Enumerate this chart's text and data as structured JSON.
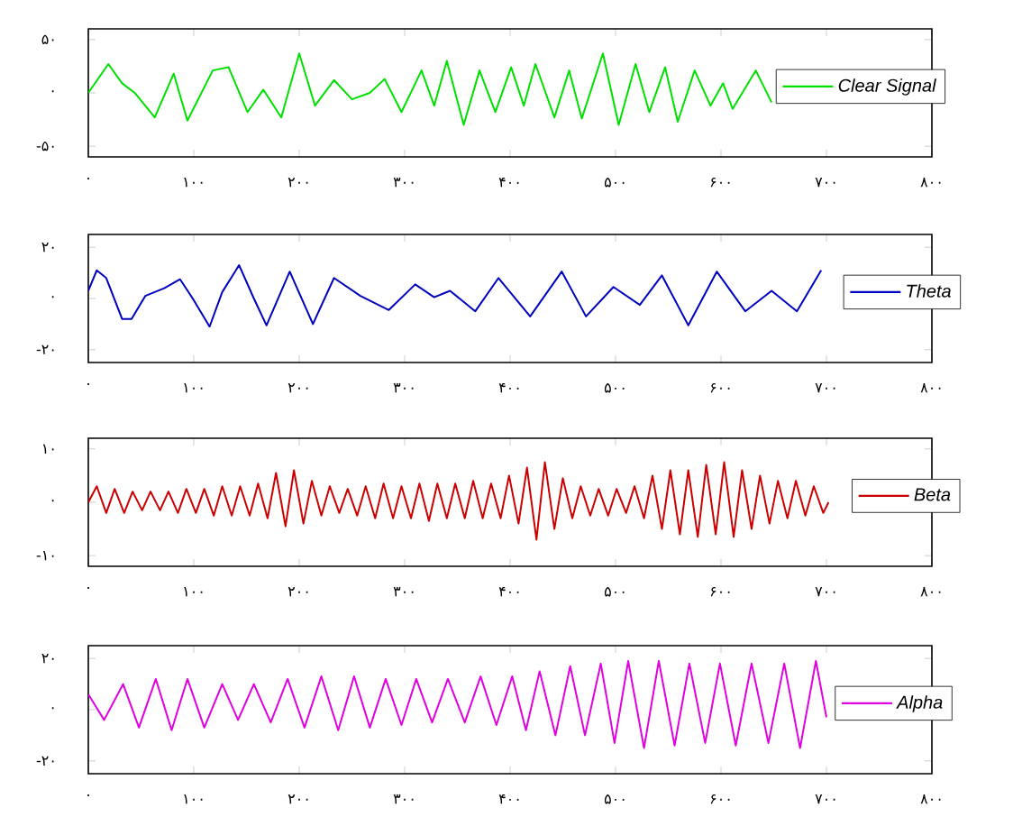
{
  "chart_data": [
    {
      "type": "line",
      "xlim": [
        0,
        800
      ],
      "ylim": [
        -60,
        60
      ],
      "legend": "right",
      "xticks": [
        {
          "value": 0,
          "label": "۰"
        },
        {
          "value": 100,
          "label": "۱۰۰"
        },
        {
          "value": 200,
          "label": "۲۰۰"
        },
        {
          "value": 300,
          "label": "۳۰۰"
        },
        {
          "value": 400,
          "label": "۴۰۰"
        },
        {
          "value": 500,
          "label": "۵۰۰"
        },
        {
          "value": 600,
          "label": "۶۰۰"
        },
        {
          "value": 700,
          "label": "۷۰۰"
        },
        {
          "value": 800,
          "label": "۸۰۰"
        }
      ],
      "yticks": [
        {
          "value": -50,
          "label": "-۵۰"
        },
        {
          "value": 0,
          "label": "۰"
        },
        {
          "value": 50,
          "label": "۵۰"
        }
      ],
      "series": [
        {
          "name": "Clear Signal",
          "color": "#00e000",
          "x": [
            0,
            19,
            32,
            44,
            63,
            81,
            94,
            118,
            133,
            151,
            166,
            183,
            200,
            215,
            233,
            250,
            267,
            281,
            297,
            316,
            328,
            340,
            356,
            371,
            386,
            401,
            413,
            424,
            442,
            456,
            468,
            488,
            503,
            519,
            532,
            547,
            559,
            575,
            590,
            602,
            611,
            633,
            648
          ],
          "values": [
            0,
            27,
            9,
            0,
            -23,
            18,
            -26,
            21,
            24,
            -18,
            3,
            -23,
            37,
            -12,
            12,
            -6,
            0,
            13,
            -18,
            21,
            -12,
            30,
            -30,
            21,
            -18,
            24,
            -12,
            27,
            -23,
            21,
            -24,
            37,
            -30,
            27,
            -18,
            24,
            -27,
            21,
            -12,
            9,
            -15,
            21,
            -9
          ]
        }
      ]
    },
    {
      "type": "line",
      "xlim": [
        0,
        800
      ],
      "ylim": [
        -25,
        25
      ],
      "legend": "right",
      "xticks": [
        {
          "value": 0,
          "label": "۰"
        },
        {
          "value": 100,
          "label": "۱۰۰"
        },
        {
          "value": 200,
          "label": "۲۰۰"
        },
        {
          "value": 300,
          "label": "۳۰۰"
        },
        {
          "value": 400,
          "label": "۴۰۰"
        },
        {
          "value": 500,
          "label": "۵۰۰"
        },
        {
          "value": 600,
          "label": "۶۰۰"
        },
        {
          "value": 700,
          "label": "۷۰۰"
        },
        {
          "value": 800,
          "label": "۸۰۰"
        }
      ],
      "yticks": [
        {
          "value": -20,
          "label": "-۲۰"
        },
        {
          "value": 0,
          "label": "۰"
        },
        {
          "value": 20,
          "label": "۲۰"
        }
      ],
      "series": [
        {
          "name": "Theta",
          "color": "#0000c0",
          "x": [
            0,
            8,
            17,
            32,
            41,
            54,
            72,
            87,
            99,
            115,
            127,
            143,
            157,
            169,
            191,
            213,
            233,
            258,
            285,
            310,
            328,
            343,
            367,
            389,
            419,
            449,
            472,
            498,
            523,
            544,
            569,
            596,
            623,
            648,
            672,
            695
          ],
          "values": [
            3,
            11,
            8,
            -8,
            -8,
            1,
            4,
            7.5,
            0,
            -11,
            2.5,
            13,
            0,
            -10.5,
            10.5,
            -10,
            8,
            1,
            -4.5,
            5.5,
            0.5,
            3,
            -5,
            8,
            -7,
            10.5,
            -7,
            4.5,
            -2.5,
            9,
            -10.5,
            10.5,
            -5,
            3,
            -5,
            11
          ]
        }
      ]
    },
    {
      "type": "line",
      "xlim": [
        0,
        800
      ],
      "ylim": [
        -12,
        12
      ],
      "legend": "right",
      "xticks": [
        {
          "value": 0,
          "label": "۰"
        },
        {
          "value": 100,
          "label": "۱۰۰"
        },
        {
          "value": 200,
          "label": "۲۰۰"
        },
        {
          "value": 300,
          "label": "۳۰۰"
        },
        {
          "value": 400,
          "label": "۴۰۰"
        },
        {
          "value": 500,
          "label": "۵۰۰"
        },
        {
          "value": 600,
          "label": "۶۰۰"
        },
        {
          "value": 700,
          "label": "۷۰۰"
        },
        {
          "value": 800,
          "label": "۸۰۰"
        }
      ],
      "yticks": [
        {
          "value": -10,
          "label": "-۱۰"
        },
        {
          "value": 0,
          "label": "۰"
        },
        {
          "value": 10,
          "label": "۱۰"
        }
      ],
      "series": [
        {
          "name": "Beta",
          "color": "#cc0000",
          "x": [
            0,
            8,
            17,
            25,
            34,
            42,
            51,
            59,
            68,
            76,
            85,
            93,
            102,
            110,
            119,
            127,
            136,
            144,
            153,
            161,
            170,
            178,
            187,
            195,
            204,
            212,
            221,
            229,
            238,
            246,
            255,
            263,
            272,
            280,
            289,
            297,
            306,
            314,
            323,
            331,
            340,
            348,
            357,
            365,
            374,
            382,
            391,
            399,
            408,
            416,
            425,
            433,
            442,
            450,
            459,
            467,
            476,
            484,
            493,
            501,
            510,
            518,
            527,
            535,
            544,
            552,
            561,
            569,
            578,
            586,
            595,
            603,
            612,
            620,
            629,
            637,
            646,
            654,
            663,
            671,
            680,
            688,
            697,
            702
          ],
          "values": [
            0,
            3,
            -2,
            2.5,
            -2,
            2,
            -1.5,
            2,
            -1.5,
            2,
            -2,
            2.5,
            -2,
            2.5,
            -2.5,
            3,
            -2.5,
            3,
            -2.5,
            3.5,
            -3,
            5.5,
            -4.5,
            6,
            -4,
            4,
            -2.5,
            3,
            -2,
            2.5,
            -2.5,
            3,
            -3,
            3.5,
            -3,
            3,
            -3,
            3.5,
            -3.5,
            3.5,
            -3,
            3.5,
            -3,
            4,
            -3,
            3.5,
            -3,
            5,
            -4,
            6.5,
            -7,
            7.5,
            -5,
            4.5,
            -3,
            3,
            -2.5,
            2.5,
            -2.5,
            2.5,
            -2,
            3,
            -3,
            5,
            -5,
            6,
            -6,
            6,
            -6.5,
            7,
            -6,
            7.5,
            -6.5,
            6,
            -5,
            5,
            -4,
            4,
            -3,
            4,
            -2.5,
            3,
            -2,
            0
          ]
        }
      ]
    },
    {
      "type": "line",
      "xlim": [
        0,
        800
      ],
      "ylim": [
        -25,
        25
      ],
      "legend": "right",
      "xticks": [
        {
          "value": 0,
          "label": "۰"
        },
        {
          "value": 100,
          "label": "۱۰۰"
        },
        {
          "value": 200,
          "label": "۲۰۰"
        },
        {
          "value": 300,
          "label": "۳۰۰"
        },
        {
          "value": 400,
          "label": "۴۰۰"
        },
        {
          "value": 500,
          "label": "۵۰۰"
        },
        {
          "value": 600,
          "label": "۶۰۰"
        },
        {
          "value": 700,
          "label": "۷۰۰"
        },
        {
          "value": 800,
          "label": "۸۰۰"
        }
      ],
      "yticks": [
        {
          "value": -20,
          "label": "-۲۰"
        },
        {
          "value": 0,
          "label": "۰"
        },
        {
          "value": 20,
          "label": "۲۰"
        }
      ],
      "series": [
        {
          "name": "Alpha",
          "color": "#e000e0",
          "x": [
            0,
            15,
            33,
            48,
            64,
            79,
            94,
            110,
            127,
            142,
            157,
            173,
            189,
            205,
            221,
            237,
            252,
            267,
            282,
            297,
            311,
            326,
            341,
            357,
            372,
            387,
            402,
            415,
            428,
            443,
            457,
            471,
            486,
            499,
            512,
            527,
            541,
            556,
            570,
            585,
            599,
            614,
            629,
            645,
            660,
            675,
            690,
            700
          ],
          "values": [
            6,
            -4,
            10,
            -7,
            12,
            -8,
            12,
            -7,
            10,
            -4,
            10,
            -5,
            12,
            -7,
            13,
            -8,
            13,
            -7,
            12,
            -6,
            12,
            -5,
            12,
            -5,
            13,
            -6,
            13,
            -8,
            15,
            -10,
            17,
            -10,
            18,
            -13,
            19,
            -15,
            19,
            -14,
            18,
            -13,
            18,
            -14,
            18,
            -13,
            18,
            -15,
            19,
            -3
          ]
        }
      ]
    }
  ]
}
